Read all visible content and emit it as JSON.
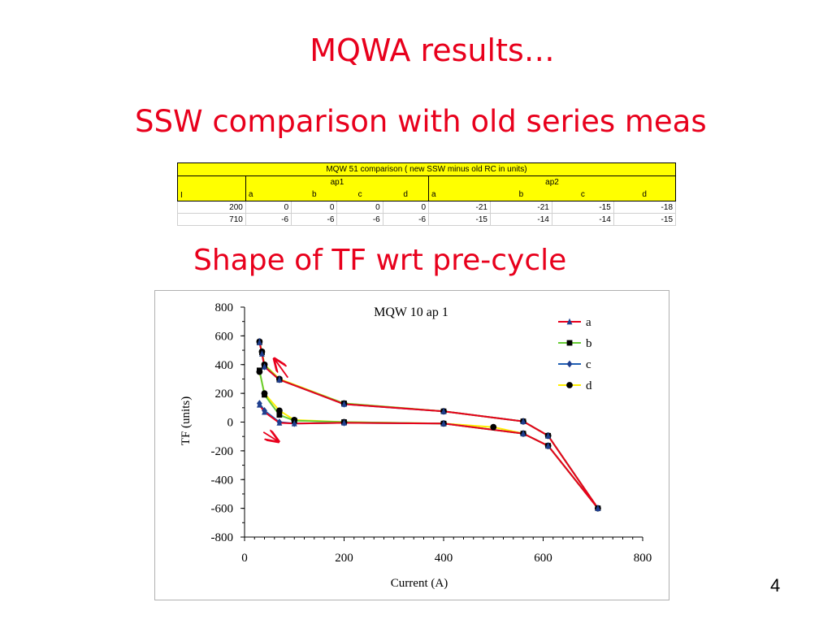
{
  "slide": {
    "title": "MQWA results…",
    "subtitle": "SSW comparison with old series meas",
    "subtitle2": "Shape of TF wrt pre-cycle",
    "page_number": "4"
  },
  "table": {
    "title": "MQW 51 comparison ( new SSW minus old RC in units)",
    "group1": "ap1",
    "group2": "ap2",
    "header": [
      "I",
      "a",
      "b",
      "c",
      "d",
      "a",
      "b",
      "c",
      "d"
    ],
    "rows": [
      [
        "200",
        "0",
        "0",
        "0",
        "0",
        "-21",
        "-21",
        "-15",
        "-18"
      ],
      [
        "710",
        "-6",
        "-6",
        "-6",
        "-6",
        "-15",
        "-14",
        "-14",
        "-15"
      ]
    ]
  },
  "colors": {
    "text_red": "#e8001c",
    "table_yellow": "#ffff00",
    "series_a": "#e8001c",
    "series_b": "#66cc33",
    "series_c": "#1f5fb4",
    "series_d": "#ffee00"
  },
  "chart_data": {
    "type": "line",
    "title": "MQW 10 ap 1",
    "xlabel": "Current (A)",
    "ylabel": "TF (units)",
    "xlim": [
      0,
      800
    ],
    "ylim": [
      -800,
      800
    ],
    "xticks": [
      "0",
      "200",
      "400",
      "600",
      "800"
    ],
    "yticks": [
      "800",
      "600",
      "400",
      "200",
      "0",
      "-200",
      "-400",
      "-600",
      "-800"
    ],
    "legend_position": "top-right",
    "series": [
      {
        "name": "a",
        "color": "#e8001c",
        "marker": "triangle",
        "x": [
          30,
          40,
          70,
          100,
          200,
          400,
          560,
          610,
          710,
          610,
          560,
          400,
          200,
          70,
          40,
          35,
          30
        ],
        "y": [
          120,
          70,
          -5,
          -10,
          -5,
          -10,
          -80,
          -165,
          -600,
          -95,
          5,
          75,
          125,
          295,
          385,
          475,
          555
        ]
      },
      {
        "name": "b",
        "color": "#66cc33",
        "marker": "square",
        "x": [
          30,
          40,
          70,
          100,
          200,
          400,
          560,
          610,
          710,
          610,
          560,
          400,
          200,
          70,
          40,
          35,
          30
        ],
        "y": [
          360,
          190,
          50,
          10,
          0,
          -10,
          -80,
          -165,
          -600,
          -95,
          5,
          75,
          130,
          295,
          395,
          485,
          555
        ]
      },
      {
        "name": "c",
        "color": "#1f5fb4",
        "marker": "diamond",
        "x": [
          30,
          40,
          70,
          100,
          200,
          400,
          560,
          610,
          710,
          610,
          560,
          400,
          200,
          70,
          40,
          35,
          30
        ],
        "y": [
          130,
          80,
          0,
          -10,
          -5,
          -10,
          -80,
          -165,
          -600,
          -95,
          5,
          75,
          125,
          295,
          385,
          480,
          560
        ]
      },
      {
        "name": "d",
        "color": "#ffee00",
        "marker": "circle",
        "x": [
          30,
          40,
          70,
          100,
          200,
          400,
          500,
          560,
          610,
          710,
          610,
          560,
          400,
          200,
          70,
          40,
          35,
          30
        ],
        "y": [
          350,
          200,
          80,
          15,
          0,
          -10,
          -35,
          -80,
          -165,
          -600,
          -95,
          5,
          75,
          130,
          300,
          400,
          490,
          560
        ]
      }
    ],
    "annotations": [
      {
        "type": "arrow",
        "color": "#e8001c",
        "from": [
          87,
          310
        ],
        "to": [
          60,
          440
        ]
      },
      {
        "type": "arrow",
        "color": "#e8001c",
        "from": [
          38,
          -70
        ],
        "to": [
          68,
          -135
        ]
      }
    ]
  }
}
